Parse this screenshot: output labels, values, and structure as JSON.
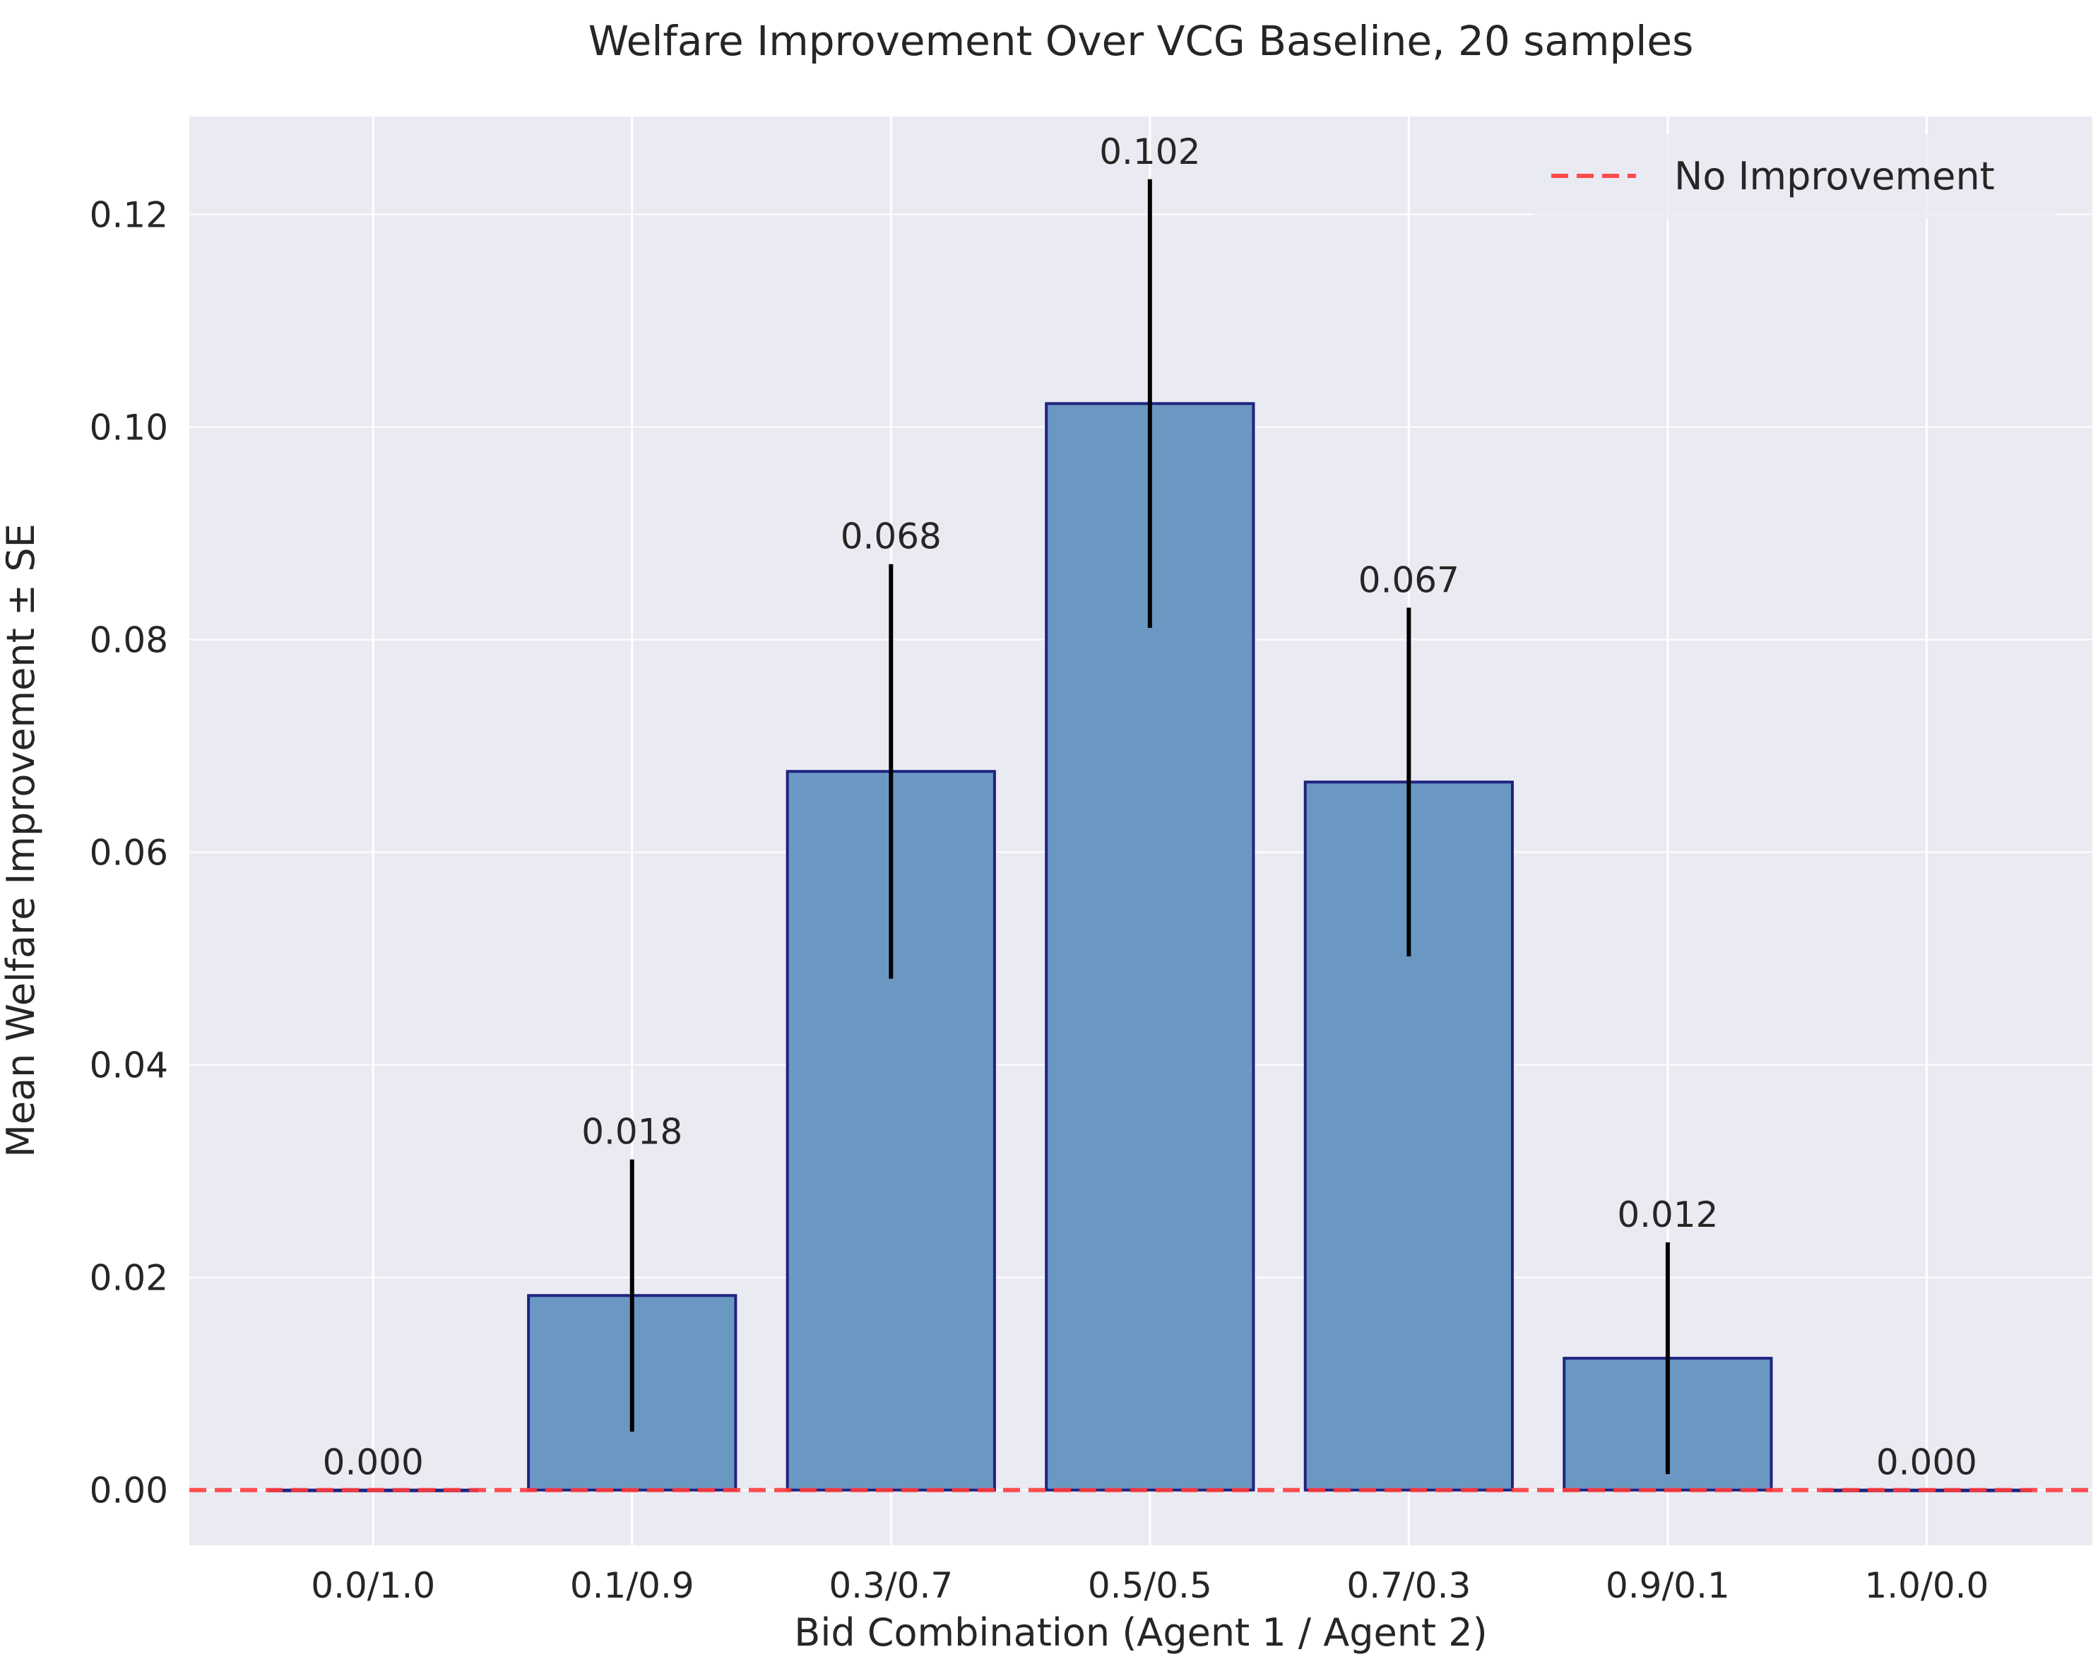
{
  "chart_data": {
    "type": "bar",
    "title": "Welfare Improvement Over VCG Baseline, 20 samples",
    "xlabel": "Bid Combination (Agent 1 / Agent 2)",
    "ylabel": "Mean Welfare Improvement ± SE",
    "categories": [
      "0.0/1.0",
      "0.1/0.9",
      "0.3/0.7",
      "0.5/0.5",
      "0.7/0.3",
      "0.9/0.1",
      "1.0/0.0"
    ],
    "values": [
      0.0,
      0.0183,
      0.0676,
      0.1022,
      0.0666,
      0.0124,
      0.0
    ],
    "errors": [
      0.0,
      0.0128,
      0.0195,
      0.0211,
      0.0164,
      0.0109,
      0.0
    ],
    "value_labels": [
      "0.000",
      "0.018",
      "0.068",
      "0.102",
      "0.067",
      "0.012",
      "0.000"
    ],
    "ylim": [
      -0.0052,
      0.1292
    ],
    "yticks": [
      0.0,
      0.02,
      0.04,
      0.06,
      0.08,
      0.1,
      0.12
    ],
    "ytick_labels": [
      "0.00",
      "0.02",
      "0.04",
      "0.06",
      "0.08",
      "0.10",
      "0.12"
    ],
    "reference_line": {
      "value": 0.0,
      "label": "No Improvement",
      "style": "dashed",
      "color": "#ff3b3b"
    },
    "legend": {
      "position": "top-right",
      "entries": [
        "No Improvement"
      ]
    },
    "grid": true,
    "colors": {
      "bar_fill": "#6a98c2",
      "bar_edge": "#1f237f",
      "error_bar": "#000000",
      "background": "#eaeaf2",
      "grid": "#ffffff"
    }
  }
}
